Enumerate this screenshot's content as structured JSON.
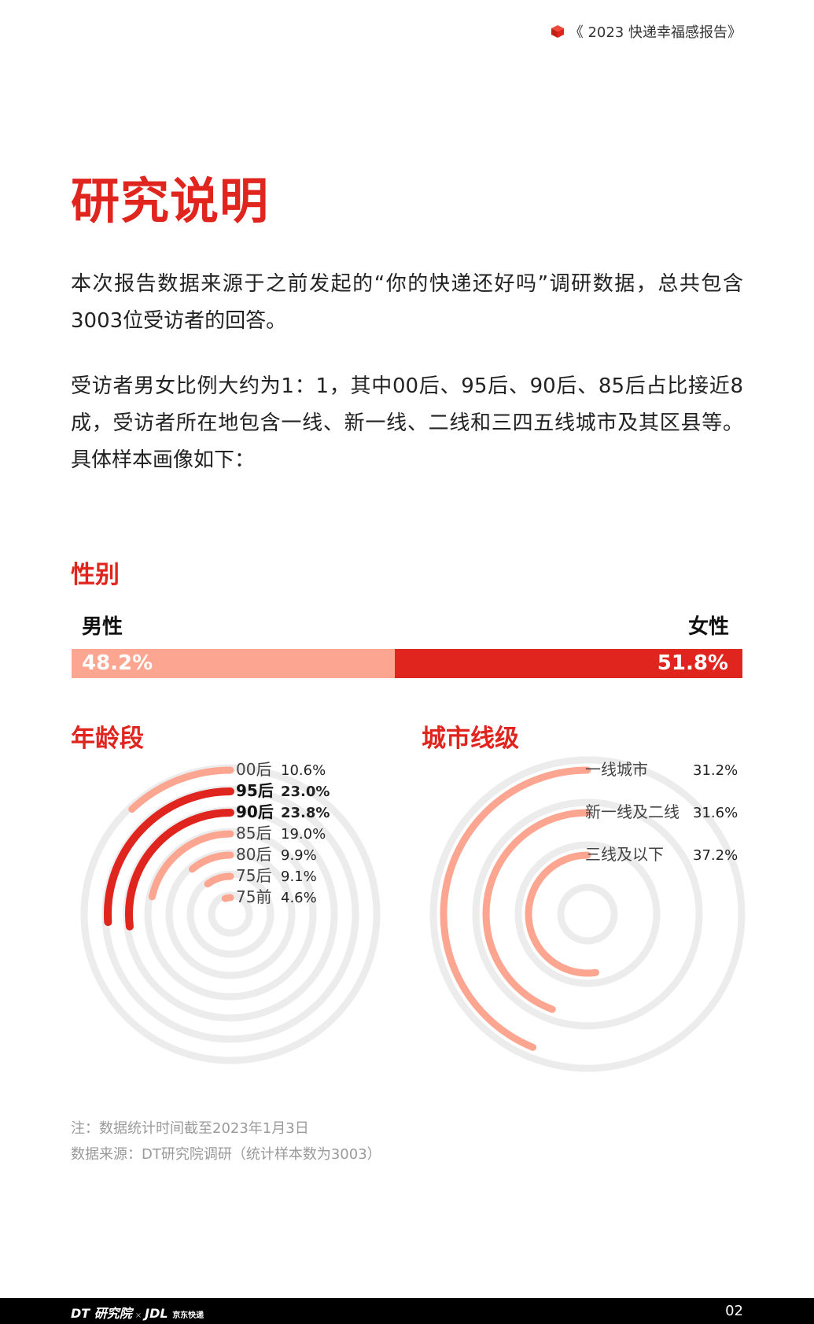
{
  "header": {
    "title": "《 2023 快递幸福感报告》"
  },
  "page_title": "研究说明",
  "paragraphs": [
    "本次报告数据来源于之前发起的“你的快递还好吗”调研数据，总共包含3003位受访者的回答。",
    "受访者男女比例大约为1：1，其中00后、95后、90后、85后占比接近8成，受访者所在地包含一线、新一线、二线和三四五线城市及其区县等。具体样本画像如下："
  ],
  "colors": {
    "red": "#e0251f",
    "salmon": "#fca590",
    "ring": "#ececec"
  },
  "chart_data": [
    {
      "type": "bar",
      "title": "性别",
      "categories": [
        "男性",
        "女性"
      ],
      "values": [
        48.2,
        51.8
      ],
      "labels": [
        "48.2%",
        "51.8%"
      ]
    },
    {
      "type": "radial-bar",
      "title": "年龄段",
      "categories": [
        "00后",
        "95后",
        "90后",
        "85后",
        "80后",
        "75后",
        "75前"
      ],
      "values": [
        10.6,
        23.0,
        23.8,
        19.0,
        9.9,
        9.1,
        4.6
      ],
      "labels": [
        "10.6%",
        "23.0%",
        "23.8%",
        "19.0%",
        "9.9%",
        "9.1%",
        "4.6%"
      ],
      "highlight": [
        false,
        true,
        true,
        false,
        false,
        false,
        false
      ]
    },
    {
      "type": "radial-bar",
      "title": "城市线级",
      "categories": [
        "一线城市",
        "新一线及二线",
        "三线及以下"
      ],
      "values": [
        31.2,
        31.6,
        37.2
      ],
      "labels": [
        "31.2%",
        "31.6%",
        "37.2%"
      ]
    }
  ],
  "notes": {
    "note": "注：数据统计时间截至2023年1月3日",
    "source": "数据来源：DT研究院调研（统计样本数为3003）"
  },
  "footer": {
    "logo_dt": "DT 研究院",
    "logo_x": "×",
    "logo_jdl": "JDL",
    "logo_jd_cn": "京东快递",
    "page_number": "02"
  }
}
